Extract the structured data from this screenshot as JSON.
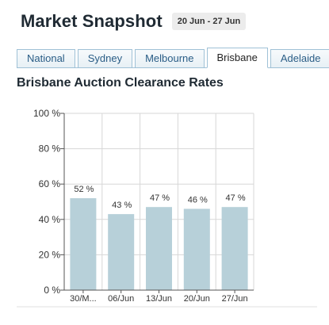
{
  "header": {
    "title": "Market Snapshot",
    "date_range": "20 Jun - 27 Jun"
  },
  "tabs": [
    {
      "label": "National",
      "active": false
    },
    {
      "label": "Sydney",
      "active": false
    },
    {
      "label": "Melbourne",
      "active": false
    },
    {
      "label": "Brisbane",
      "active": true
    },
    {
      "label": "Adelaide",
      "active": false
    }
  ],
  "chart_data": {
    "type": "bar",
    "title": "Brisbane Auction Clearance Rates",
    "categories": [
      "30/M...",
      "06/Jun",
      "13/Jun",
      "20/Jun",
      "27/Jun"
    ],
    "values": [
      52,
      43,
      47,
      46,
      47
    ],
    "data_labels": [
      "52 %",
      "43 %",
      "47 %",
      "46 %",
      "47 %"
    ],
    "ylim": [
      0,
      100
    ],
    "yticks": [
      0,
      20,
      40,
      60,
      80,
      100
    ],
    "ytick_labels": [
      "0 %",
      "20 %",
      "40 %",
      "60 %",
      "80 %",
      "100 %"
    ],
    "grid": true,
    "bar_color": "#b7d0d9",
    "grid_color": "#d7d7d7"
  }
}
